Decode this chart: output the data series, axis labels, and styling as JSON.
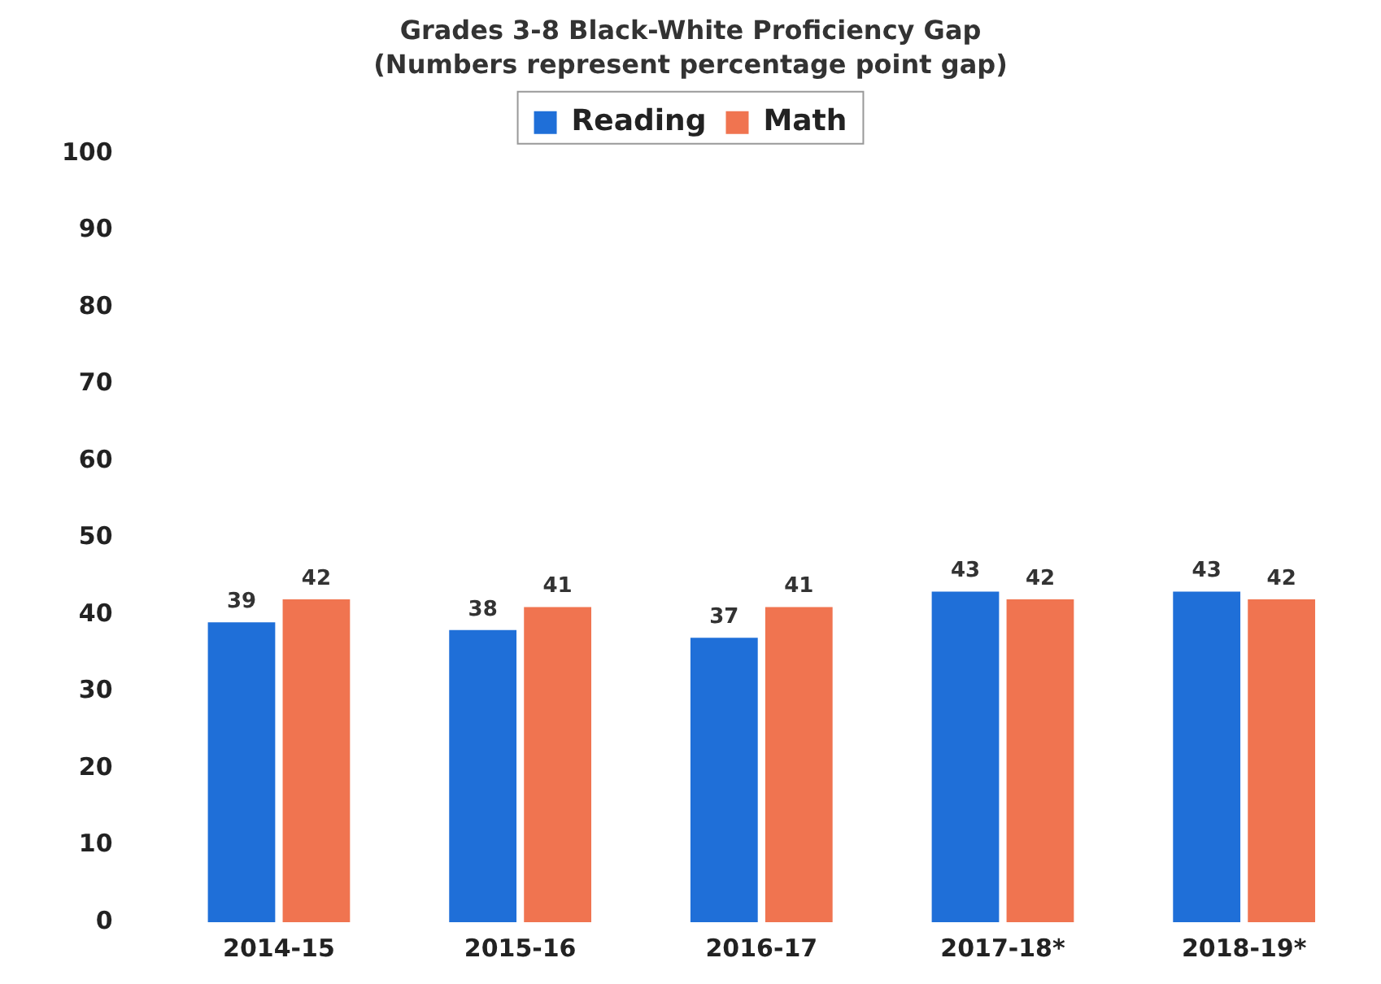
{
  "chart_data": {
    "type": "bar",
    "title": "Grades 3-8 Black-White Proficiency Gap",
    "subtitle": "(Numbers represent percentage point gap)",
    "categories": [
      "2014-15",
      "2015-16",
      "2016-17",
      "2017-18*",
      "2018-19*"
    ],
    "series": [
      {
        "name": "Reading",
        "color": "#1f6fd8",
        "values": [
          39,
          38,
          37,
          43,
          43
        ]
      },
      {
        "name": "Math",
        "color": "#f07450",
        "values": [
          42,
          41,
          41,
          42,
          42
        ]
      }
    ],
    "ylim": [
      0,
      100
    ],
    "yticks": [
      0,
      10,
      20,
      30,
      40,
      50,
      60,
      70,
      80,
      90,
      100
    ],
    "grid": false,
    "legend": "top",
    "data_labels": true
  }
}
